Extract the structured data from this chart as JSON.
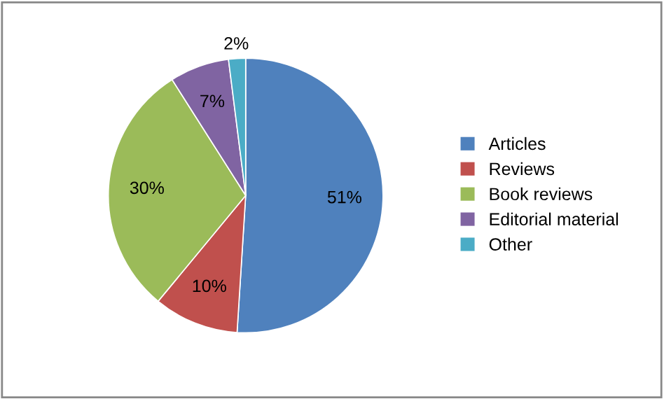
{
  "chart_data": {
    "type": "pie",
    "categories": [
      "Articles",
      "Reviews",
      "Book reviews",
      "Editorial material",
      "Other"
    ],
    "values": [
      51,
      10,
      30,
      7,
      2
    ],
    "colors": [
      "#4f81bd",
      "#c0504d",
      "#9bbb59",
      "#8064a2",
      "#4bacc6"
    ],
    "value_labels": [
      "51%",
      "10%",
      "30%",
      "7%",
      "2%"
    ],
    "legend": "right"
  }
}
